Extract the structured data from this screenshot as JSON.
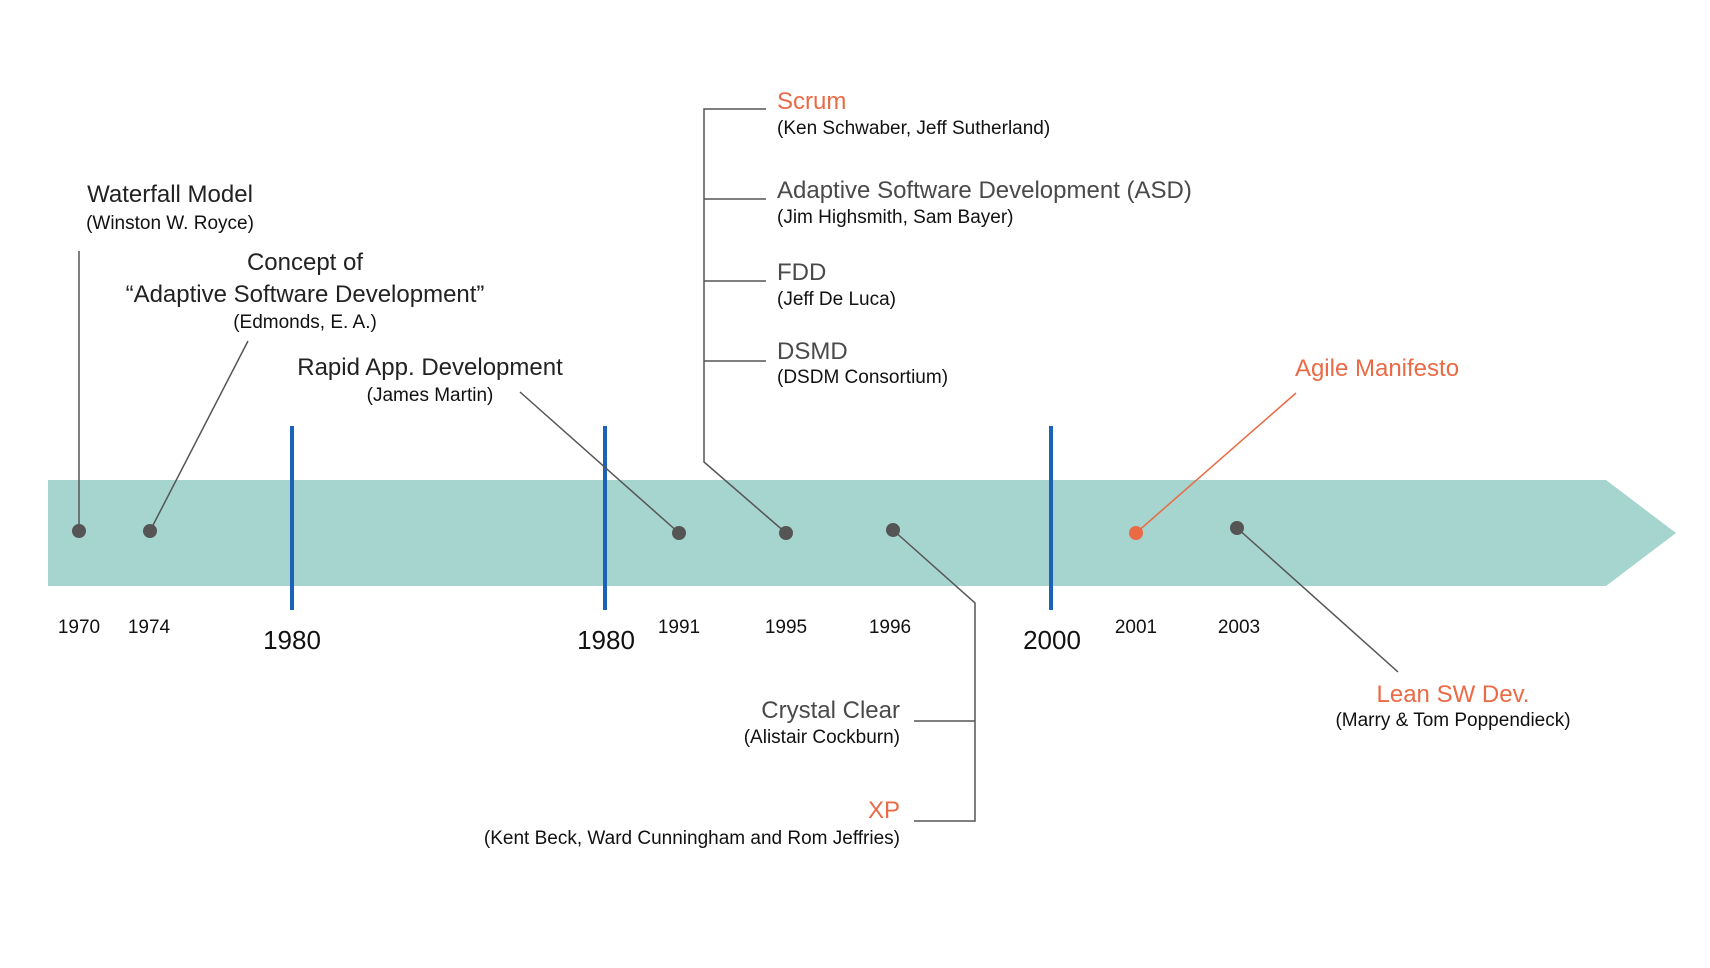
{
  "colors": {
    "band": "#a6d4ce",
    "decade_marker": "#1e62b8",
    "dot": "#555555",
    "connector": "#555555",
    "accent": "#ea6a45",
    "text": "#222222"
  },
  "years": [
    "1970",
    "1974",
    "1991",
    "1995",
    "1996",
    "2001",
    "2003"
  ],
  "decades": [
    "1980",
    "1980",
    "2000"
  ],
  "events": {
    "waterfall": {
      "title": "Waterfall Model",
      "sub": "(Winston W. Royce)"
    },
    "concept": {
      "title_1": "Concept of",
      "title_2": "“Adaptive Software Development”",
      "sub": "(Edmonds, E. A.)"
    },
    "rad": {
      "title": "Rapid App. Development",
      "sub": "(James Martin)"
    },
    "scrum": {
      "title": "Scrum",
      "sub": "(Ken Schwaber, Jeff Sutherland)"
    },
    "asd": {
      "title": "Adaptive Software Development (ASD)",
      "sub": "(Jim Highsmith, Sam Bayer)"
    },
    "fdd": {
      "title": "FDD",
      "sub": "(Jeff De Luca)"
    },
    "dsmd": {
      "title": "DSMD",
      "sub": "(DSDM Consortium)"
    },
    "crystal": {
      "title": "Crystal Clear",
      "sub": "(Alistair Cockburn)"
    },
    "xp": {
      "title": "XP",
      "sub": "(Kent Beck, Ward Cunningham and Rom Jeffries)"
    },
    "agile": {
      "title": "Agile Manifesto"
    },
    "lean": {
      "title": "Lean SW Dev.",
      "sub": "(Marry & Tom Poppendieck)"
    }
  }
}
